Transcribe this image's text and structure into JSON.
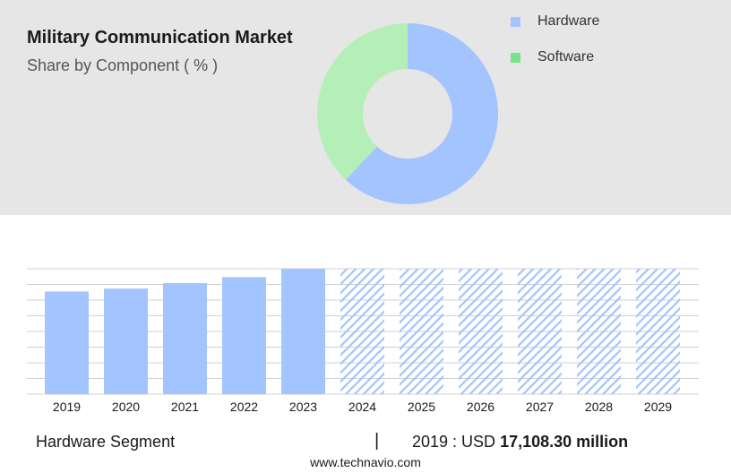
{
  "header": {
    "title": "Military Communication Market",
    "subtitle": "Share by Component ( % )"
  },
  "legend": [
    {
      "label": "Hardware",
      "color": "#a4c4ff"
    },
    {
      "label": "Software",
      "color": "#76e48a"
    }
  ],
  "chart_data": [
    {
      "type": "pie",
      "title": "Share by Component ( % )",
      "donut": true,
      "slices": [
        {
          "label": "Hardware",
          "value": 62,
          "color": "#a4c4ff"
        },
        {
          "label": "Software",
          "value": 38,
          "color": "#b5efb8"
        }
      ]
    },
    {
      "type": "bar",
      "categories": [
        "2019",
        "2020",
        "2021",
        "2022",
        "2023",
        "2024",
        "2025",
        "2026",
        "2027",
        "2028",
        "2029"
      ],
      "series": [
        {
          "name": "Hardware Segment",
          "values": [
            17108.3,
            17600,
            18500,
            19500,
            20900,
            null,
            null,
            null,
            null,
            null,
            null
          ]
        }
      ],
      "forecast_categories": [
        "2024",
        "2025",
        "2026",
        "2027",
        "2028",
        "2029"
      ],
      "ylim": [
        0,
        20900
      ],
      "grid": true,
      "bar_color": "#a4c4ff",
      "forecast_color": "#a4c4ff"
    }
  ],
  "footer": {
    "segment": "Hardware Segment",
    "separator": "|",
    "value_prefix": "2019 : USD ",
    "value_amount": "17,108.30 million",
    "url": "www.technavio.com"
  }
}
